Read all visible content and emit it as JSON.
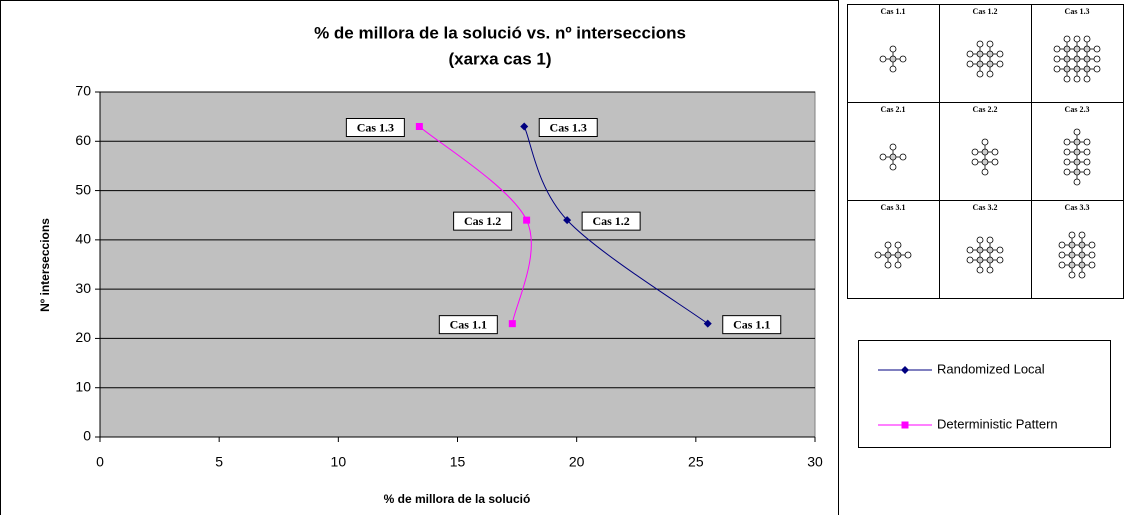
{
  "chart_data": {
    "type": "scatter",
    "title": [
      "% de millora de la solució vs. nº interseccions",
      "(xarxa cas 1)"
    ],
    "x_label": "% de millora de la solució",
    "y_label": "Nº interseccions",
    "xlim": [
      0,
      30
    ],
    "xticks": [
      0,
      5,
      10,
      15,
      20,
      25,
      30
    ],
    "ylim": [
      0,
      70
    ],
    "yticks": [
      0,
      10,
      20,
      30,
      40,
      50,
      60,
      70
    ],
    "grid": true,
    "smooth": true,
    "series": [
      {
        "name": "Randomized Local",
        "color": "#000080",
        "marker": "diamond",
        "x": [
          17.8,
          19.6,
          25.5
        ],
        "values": [
          63,
          44,
          23
        ],
        "point_labels": [
          "Cas 1.3",
          "Cas 1.2",
          "Cas 1.1"
        ]
      },
      {
        "name": "Deterministic Pattern",
        "color": "#ff00ff",
        "marker": "square",
        "x": [
          13.4,
          17.9,
          17.3
        ],
        "values": [
          63,
          44,
          23
        ],
        "point_labels": [
          "Cas 1.3",
          "Cas 1.2",
          "Cas 1.1"
        ]
      }
    ],
    "thumbnails": [
      [
        "Cas 1.1",
        "Cas 1.2",
        "Cas 1.3"
      ],
      [
        "Cas 2.1",
        "Cas 2.2",
        "Cas 2.3"
      ],
      [
        "Cas 3.1",
        "Cas 3.2",
        "Cas 3.3"
      ]
    ]
  }
}
